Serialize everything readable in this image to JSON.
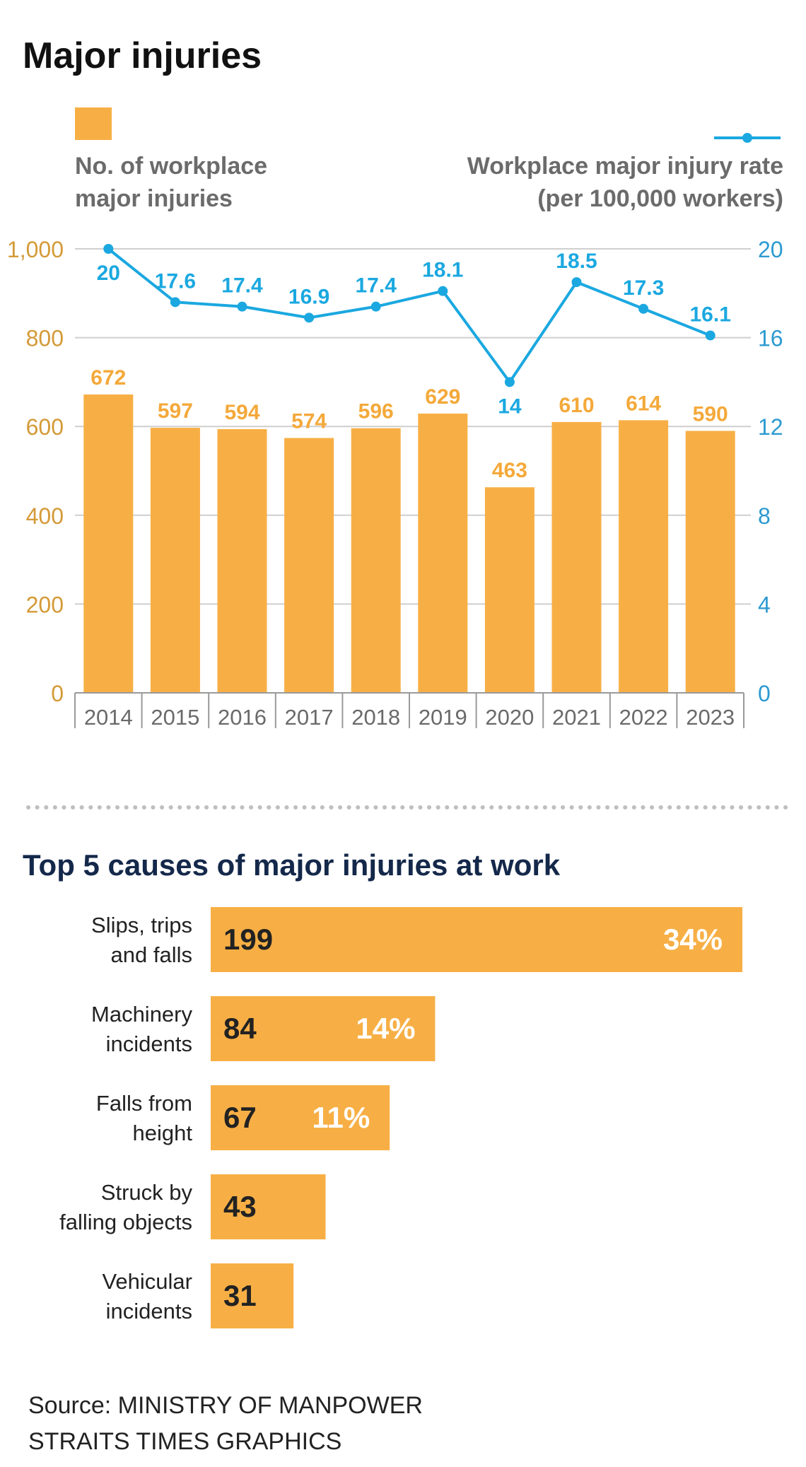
{
  "colors": {
    "bar": "#F7AF45",
    "bar_label": "#F4A93A",
    "line": "#1BA8E0",
    "left_axis_text": "#D49A37",
    "right_axis_text": "#2C9AD0",
    "heading": "#111111",
    "section_heading": "#14284A",
    "legend_text": "#6B6B6B",
    "gridline": "#CFCFCF",
    "dots": "#BFBFBF",
    "axis_text": "#6A6A6A",
    "cause_value": "#222222",
    "cause_pct": "#FFFFFF"
  },
  "chart_data": [
    {
      "type": "bar+line",
      "title": "Major injuries",
      "categories": [
        "2014",
        "2015",
        "2016",
        "2017",
        "2018",
        "2019",
        "2020",
        "2021",
        "2022",
        "2023"
      ],
      "series": [
        {
          "name": "No. of workplace major injuries",
          "legend_lines": [
            "No. of workplace",
            "major injuries"
          ],
          "type": "bar",
          "axis": "left",
          "values": [
            672,
            597,
            594,
            574,
            596,
            629,
            463,
            610,
            614,
            590
          ],
          "labels": [
            "672",
            "597",
            "594",
            "574",
            "596",
            "629",
            "463",
            "610",
            "614",
            "590"
          ]
        },
        {
          "name": "Workplace major injury rate (per 100,000 workers)",
          "legend_lines": [
            "Workplace major injury rate",
            "(per 100,000 workers)"
          ],
          "type": "line",
          "axis": "right",
          "values": [
            20,
            17.6,
            17.4,
            16.9,
            17.4,
            18.1,
            14,
            18.5,
            17.3,
            16.1
          ],
          "labels": [
            "20",
            "17.6",
            "17.4",
            "16.9",
            "17.4",
            "18.1",
            "14",
            "18.5",
            "17.3",
            "16.1"
          ]
        }
      ],
      "left_axis": {
        "min": 0,
        "max": 1000,
        "ticks": [
          0,
          200,
          400,
          600,
          800,
          1000
        ],
        "tick_labels": [
          "0",
          "200",
          "400",
          "600",
          "800",
          "1,000"
        ]
      },
      "right_axis": {
        "min": 0,
        "max": 20,
        "ticks": [
          0,
          4,
          8,
          12,
          16,
          20
        ],
        "tick_labels": [
          "0",
          "4",
          "8",
          "12",
          "16",
          "20"
        ]
      },
      "grid": true,
      "xlabel": "",
      "ylabel": ""
    },
    {
      "type": "bar",
      "orientation": "horizontal",
      "title": "Top 5 causes of major injuries at work",
      "categories": [
        [
          "Slips, trips",
          "and falls"
        ],
        [
          "Machinery",
          "incidents"
        ],
        [
          "Falls from",
          "height"
        ],
        [
          "Struck by",
          "falling objects"
        ],
        [
          "Vehicular",
          "incidents"
        ]
      ],
      "values": [
        199,
        84,
        67,
        43,
        31
      ],
      "value_labels": [
        "199",
        "84",
        "67",
        "43",
        "31"
      ],
      "percent_labels": [
        "34%",
        "14%",
        "11%",
        "",
        ""
      ]
    }
  ],
  "source": {
    "line1": "Source: MINISTRY OF MANPOWER",
    "line2": "STRAITS TIMES GRAPHICS"
  }
}
